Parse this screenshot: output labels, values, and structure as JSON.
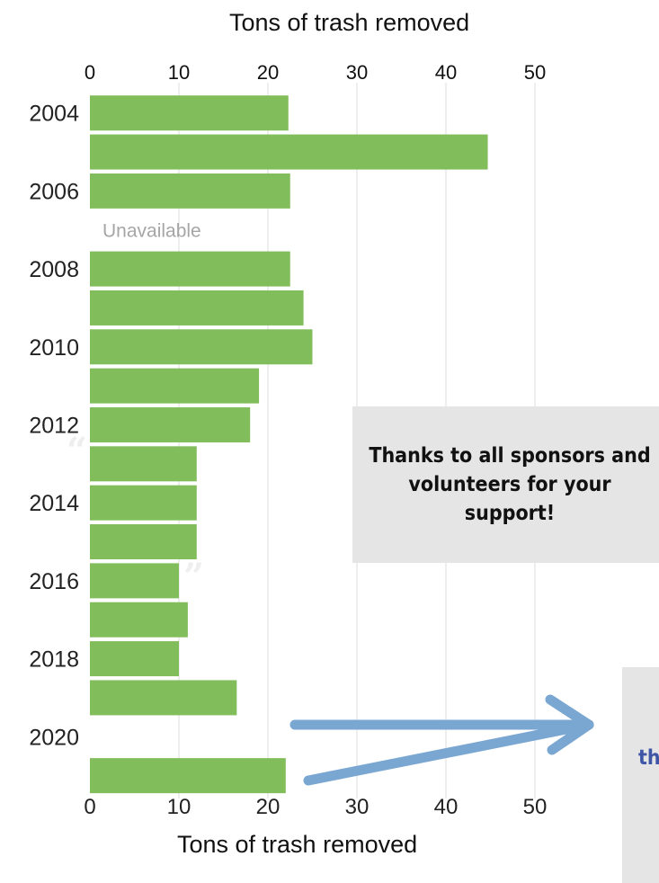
{
  "chart_data": {
    "type": "bar",
    "orientation": "horizontal",
    "title_top": "Tons of trash removed",
    "xlabel": "Tons of trash removed",
    "xlim": [
      0,
      55
    ],
    "xticks": [
      0,
      10,
      20,
      30,
      40,
      50
    ],
    "grid": true,
    "bar_color": "#82bd5c",
    "categories": [
      "2004",
      "2005",
      "2006",
      "2007",
      "2008",
      "2009",
      "2010",
      "2011",
      "2012",
      "2013",
      "2014",
      "2015",
      "2016",
      "2017",
      "2018",
      "2019",
      "2020",
      "2021"
    ],
    "y_tick_labels": [
      "2004",
      "2006",
      "2008",
      "2010",
      "2012",
      "2014",
      "2016",
      "2018",
      "2020"
    ],
    "values": [
      22.3,
      44.7,
      22.5,
      null,
      22.5,
      24.0,
      25.0,
      19.0,
      18.0,
      12.0,
      12.0,
      12.0,
      10.0,
      11.0,
      10.0,
      16.5,
      null,
      22.0
    ],
    "annotations": [
      {
        "category": "2007",
        "text": "Unavailable"
      }
    ]
  },
  "callouts": {
    "thanks": "Thanks to all sponsors and volunteers for your support!",
    "right_partial": "th"
  },
  "colors": {
    "arrow": "#7aa6d2",
    "callout_bg": "#e5e5e5",
    "annotation": "#a6a6a6",
    "gridline": "#dcdcdc"
  },
  "decor": {
    "quote_open": "“",
    "quote_close": "”"
  }
}
